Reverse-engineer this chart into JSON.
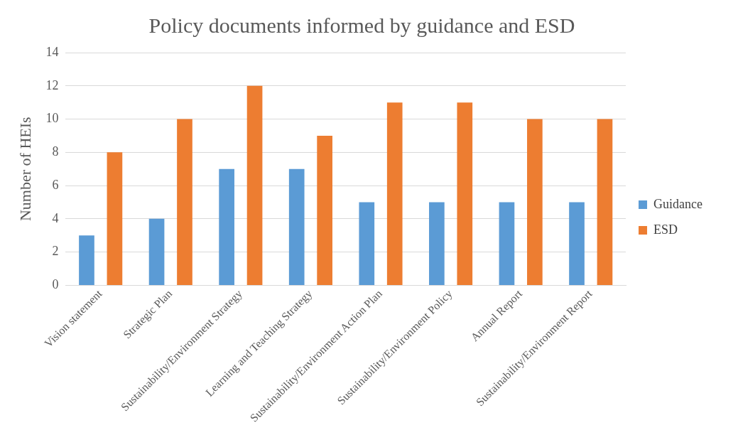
{
  "chart_data": {
    "type": "bar",
    "title": "Policy documents informed by guidance and ESD",
    "ylabel": "Number of HEIs",
    "categories": [
      "Vision statement",
      "Strategic Plan",
      "Sustainability/Environment Strategy",
      "Learning and Teaching Strategy",
      "Sustainability/Environment Action Plan",
      "Sustainability/Environment Policy",
      "Annual Report",
      "Sustainability/Environment Report"
    ],
    "series": [
      {
        "name": "Guidance",
        "color": "#5b9bd5",
        "values": [
          3,
          4,
          7,
          7,
          5,
          5,
          5,
          5
        ]
      },
      {
        "name": "ESD",
        "color": "#ed7d31",
        "values": [
          8,
          10,
          12,
          9,
          11,
          11,
          10,
          10
        ]
      }
    ],
    "ylim": [
      0,
      14
    ],
    "yticks": [
      0,
      2,
      4,
      6,
      8,
      10,
      12,
      14
    ],
    "grid": "y",
    "legend": "right"
  }
}
